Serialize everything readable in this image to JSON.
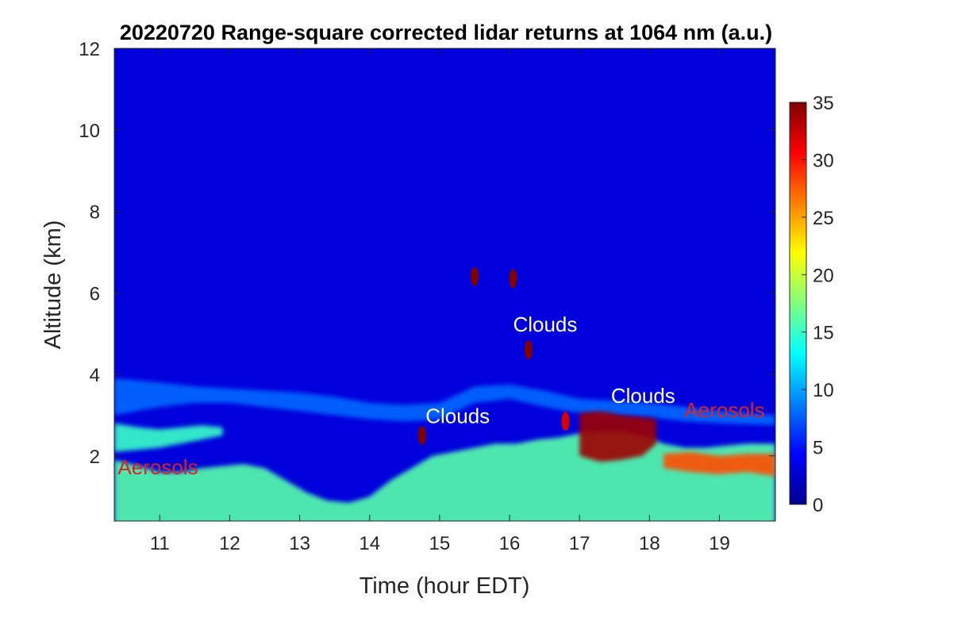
{
  "chart_data": {
    "type": "heatmap",
    "title": "20220720  Range-square corrected lidar returns at 1064 nm (a.u.)",
    "xlabel": "Time (hour EDT)",
    "ylabel": "Altitude (km)",
    "xlim": [
      10.35,
      19.8
    ],
    "ylim": [
      0.4,
      12
    ],
    "x_ticks": [
      11,
      12,
      13,
      14,
      15,
      16,
      17,
      18,
      19
    ],
    "y_ticks": [
      2,
      4,
      6,
      8,
      10,
      12
    ],
    "colorbar": {
      "range": [
        0,
        35
      ],
      "ticks": [
        0,
        5,
        10,
        15,
        20,
        25,
        30,
        35
      ],
      "colormap": "jet",
      "position": "right"
    },
    "background_value": 3,
    "layers": [
      {
        "name": "boundary-layer",
        "x": [
          10.35,
          10.7,
          11.0,
          11.3,
          11.6,
          11.9,
          12.2,
          12.5,
          12.8,
          13.1,
          13.4,
          13.7,
          14.0,
          14.3,
          14.6,
          14.9,
          15.2,
          15.5,
          15.8,
          16.1,
          16.4,
          16.7,
          17.0,
          17.3,
          17.6,
          17.9,
          18.2,
          18.5,
          18.8,
          19.1,
          19.4,
          19.8
        ],
        "top_km": [
          1.9,
          1.75,
          1.6,
          1.6,
          1.7,
          1.75,
          1.8,
          1.7,
          1.4,
          1.1,
          0.9,
          0.85,
          1.0,
          1.4,
          1.7,
          2.0,
          2.1,
          2.2,
          2.3,
          2.3,
          2.4,
          2.45,
          2.55,
          2.6,
          2.6,
          2.5,
          2.3,
          2.2,
          2.2,
          2.25,
          2.3,
          2.3
        ],
        "value": 16
      },
      {
        "name": "residual-layer-low",
        "x": [
          10.35,
          10.7,
          11.0,
          11.3,
          11.6,
          11.9
        ],
        "top_km": [
          2.8,
          2.7,
          2.65,
          2.7,
          2.75,
          2.7
        ],
        "bottom_km": [
          2.1,
          2.15,
          2.2,
          2.3,
          2.4,
          2.5
        ],
        "value": 15
      },
      {
        "name": "aerosol-layer-3.5km",
        "x": [
          10.35,
          11.0,
          11.5,
          12.0,
          12.5,
          13.0,
          13.5,
          14.0,
          14.5,
          15.0,
          15.5,
          16.0,
          16.5,
          17.0,
          17.5,
          18.0,
          18.5,
          19.0,
          19.8
        ],
        "top_km": [
          3.9,
          3.8,
          3.7,
          3.65,
          3.6,
          3.55,
          3.45,
          3.3,
          3.25,
          3.3,
          3.7,
          3.75,
          3.6,
          3.4,
          3.35,
          3.3,
          3.2,
          3.1,
          3.0
        ],
        "bottom_km": [
          3.0,
          3.2,
          3.3,
          3.3,
          3.2,
          3.1,
          3.0,
          2.9,
          2.85,
          2.9,
          3.3,
          3.4,
          3.2,
          3.05,
          3.0,
          2.95,
          2.85,
          2.8,
          2.75
        ],
        "value": 8
      },
      {
        "name": "cloud-deck-18km",
        "x": [
          17.0,
          17.3,
          17.6,
          17.9,
          18.1
        ],
        "top_km": [
          3.05,
          3.1,
          3.0,
          2.95,
          2.9
        ],
        "bottom_km": [
          2.0,
          1.85,
          1.9,
          2.0,
          2.3
        ],
        "value": 34
      },
      {
        "name": "aerosol-top-red",
        "x": [
          18.2,
          18.6,
          19.0,
          19.4,
          19.8
        ],
        "top_km": [
          2.05,
          2.1,
          2.0,
          2.05,
          2.05
        ],
        "bottom_km": [
          1.7,
          1.6,
          1.55,
          1.6,
          1.5
        ],
        "value": 28
      }
    ],
    "clouds": [
      {
        "x": 16.27,
        "altitude_km": 4.6,
        "value": 35
      },
      {
        "x": 14.75,
        "altitude_km": 2.5,
        "value": 35
      },
      {
        "x": 16.05,
        "altitude_km": 6.35,
        "value": 35
      },
      {
        "x": 15.5,
        "altitude_km": 6.4,
        "value": 35
      },
      {
        "x": 16.8,
        "altitude_km": 2.85,
        "value": 32
      }
    ],
    "annotations": [
      {
        "text": "Clouds",
        "x": 16.05,
        "y_km": 5.05,
        "color": "#ffffff"
      },
      {
        "text": "Clouds",
        "x": 14.8,
        "y_km": 2.8,
        "color": "#ffffff"
      },
      {
        "text": "Clouds",
        "x": 17.45,
        "y_km": 3.3,
        "color": "#ffffff"
      },
      {
        "text": "Aerosols",
        "x": 18.5,
        "y_km": 2.95,
        "color": "#e02020"
      },
      {
        "text": "Aerosols",
        "x": 10.4,
        "y_km": 1.55,
        "color": "#e02020"
      }
    ]
  }
}
